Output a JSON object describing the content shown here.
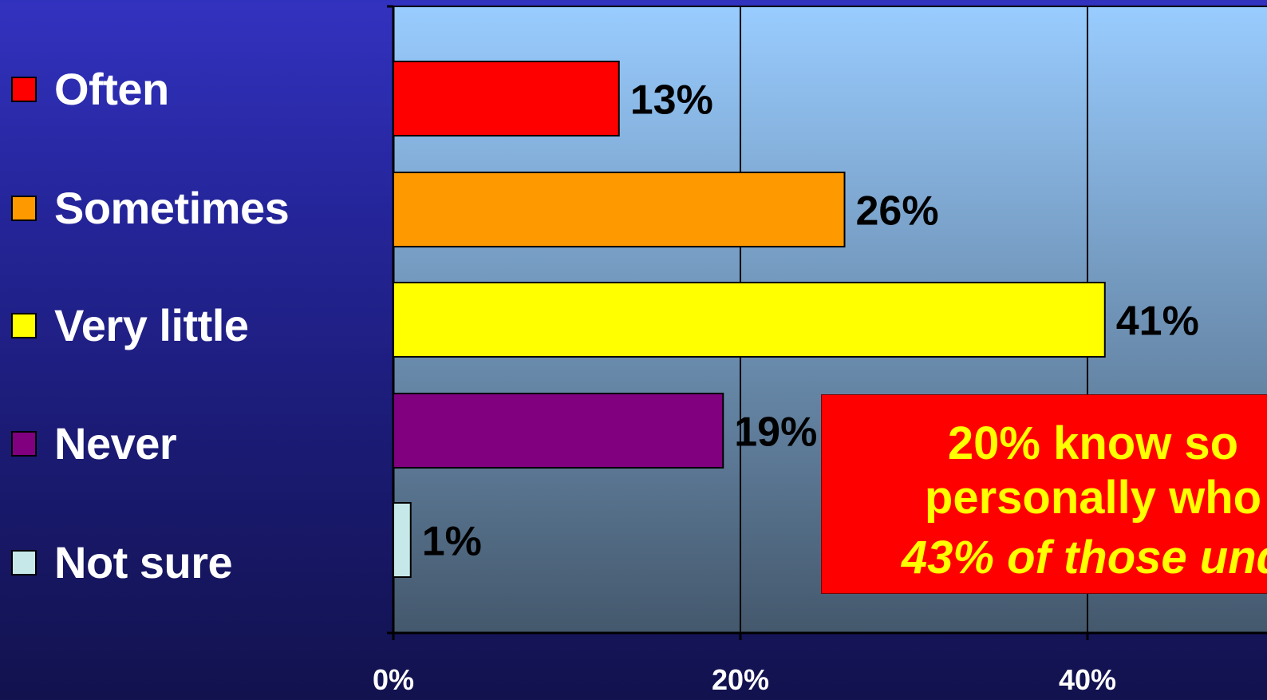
{
  "legend": [
    {
      "label": "Often",
      "color": "#ff0000"
    },
    {
      "label": "Sometimes",
      "color": "#ff9900"
    },
    {
      "label": "Very little",
      "color": "#ffff00"
    },
    {
      "label": "Never",
      "color": "#800080"
    },
    {
      "label": "Not sure",
      "color": "#c6e8e8"
    }
  ],
  "chart_data": {
    "type": "bar",
    "orientation": "horizontal",
    "categories": [
      "Often",
      "Sometimes",
      "Very little",
      "Never",
      "Not sure"
    ],
    "values": [
      13,
      26,
      41,
      19,
      1
    ],
    "data_labels": [
      "13%",
      "26%",
      "41%",
      "19%",
      "1%"
    ],
    "colors": [
      "#ff0000",
      "#ff9900",
      "#ffff00",
      "#800080",
      "#c6e8e8"
    ],
    "xlim": [
      0,
      60
    ],
    "x_ticks": [
      0,
      20,
      40
    ],
    "x_tick_labels": [
      "0%",
      "20%",
      "40%"
    ],
    "grid": "vertical",
    "plot_background": {
      "top": "#99ccff",
      "bottom": "#44586c"
    },
    "legend_position": "left"
  },
  "callout": {
    "line1": "20% know so",
    "line2": "personally who",
    "line3": "43% of those und",
    "background": "#ff0000",
    "text_color": "#ffff00"
  }
}
